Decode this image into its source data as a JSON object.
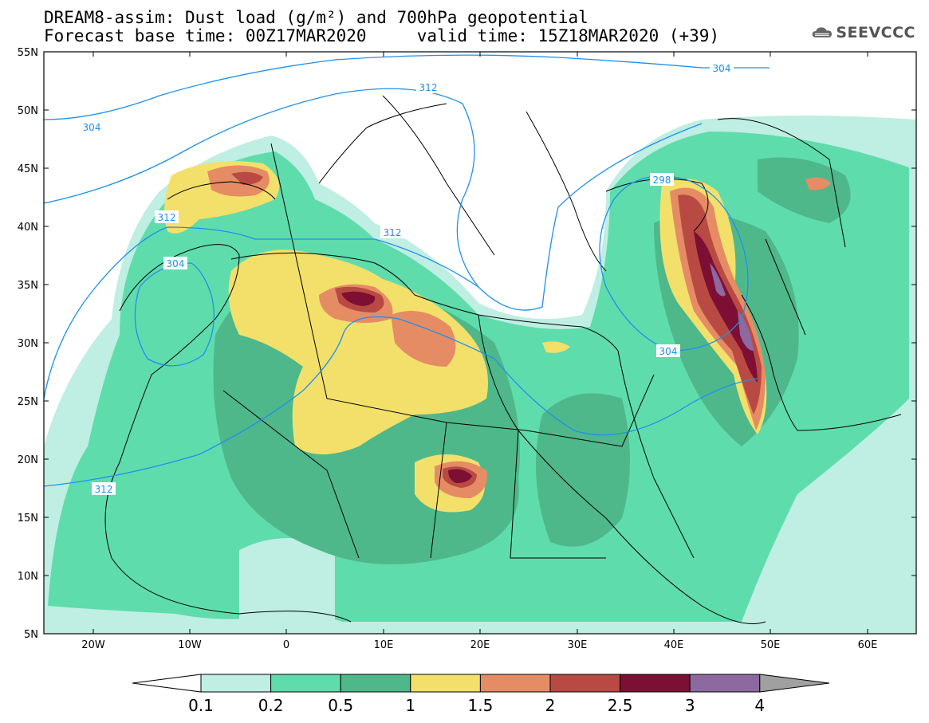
{
  "header": {
    "title_line1": "DREAM8-assim: Dust load (g/m²) and 700hPa geopotential",
    "title_line2": "Forecast base time: 00Z17MAR2020     valid time: 15Z18MAR2020 (+39)",
    "logo_text": "SEEVCCC"
  },
  "map": {
    "lat_labels": [
      "55N",
      "50N",
      "45N",
      "40N",
      "35N",
      "30N",
      "25N",
      "20N",
      "15N",
      "10N",
      "5N"
    ],
    "lon_labels": [
      "20W",
      "10W",
      "0",
      "10E",
      "20E",
      "30E",
      "40E",
      "50E",
      "60E"
    ],
    "contour_labels": [
      "304",
      "312",
      "304",
      "298",
      "312",
      "304",
      "304",
      "312",
      "312"
    ]
  },
  "colorbar": {
    "ticks": [
      "0.1",
      "0.2",
      "0.5",
      "1",
      "1.5",
      "2",
      "2.5",
      "3",
      "4"
    ],
    "colors": [
      "#ffffff",
      "#bfeee3",
      "#5fdcac",
      "#4fb88a",
      "#f3e06b",
      "#e58c64",
      "#b84a43",
      "#7c0f33",
      "#8c6aa0",
      "#a0a0a0"
    ]
  },
  "colors": {
    "contour": "#1e90ee",
    "land_border": "#000000"
  }
}
